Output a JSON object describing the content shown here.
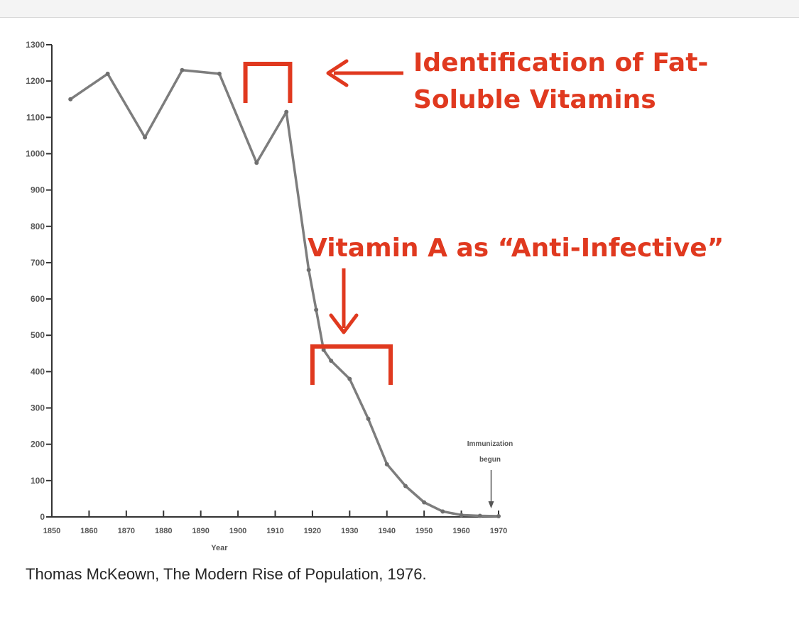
{
  "chart_data": {
    "type": "line",
    "title": "",
    "xlabel": "Year",
    "ylabel": "",
    "xlim": [
      1850,
      1970
    ],
    "ylim": [
      0,
      1300
    ],
    "xticks": [
      1850,
      1860,
      1870,
      1880,
      1890,
      1900,
      1910,
      1920,
      1930,
      1940,
      1950,
      1960,
      1970
    ],
    "yticks": [
      0,
      100,
      200,
      300,
      400,
      500,
      600,
      700,
      800,
      900,
      1000,
      1100,
      1200,
      1300
    ],
    "grid": false,
    "series": [
      {
        "x": [
          1855,
          1865,
          1875,
          1885,
          1895,
          1905,
          1913,
          1919,
          1921,
          1923,
          1925,
          1930,
          1935,
          1940,
          1945,
          1950,
          1955,
          1960,
          1965,
          1970
        ],
        "y": [
          1150,
          1220,
          1045,
          1230,
          1220,
          975,
          1115,
          680,
          570,
          460,
          430,
          380,
          270,
          145,
          85,
          40,
          15,
          5,
          3,
          2
        ]
      }
    ],
    "annotations": {
      "immunization_line1": "Immunization",
      "immunization_line2": "begun",
      "immunization_year": 1968,
      "fat_soluble_line1": "Identification of Fat-",
      "fat_soluble_line2": "Soluble Vitamins",
      "fat_soluble_range": [
        1902,
        1914
      ],
      "vitamin_a_label": "Vitamin A as “Anti-Infective”",
      "vitamin_a_range": [
        1920,
        1941
      ]
    }
  },
  "caption": "Thomas McKeown, The Modern Rise of Population, 1976.",
  "colors": {
    "line": "#7d7d7d",
    "axis": "#333333",
    "annotation": "#e0391f",
    "text": "#262626"
  }
}
